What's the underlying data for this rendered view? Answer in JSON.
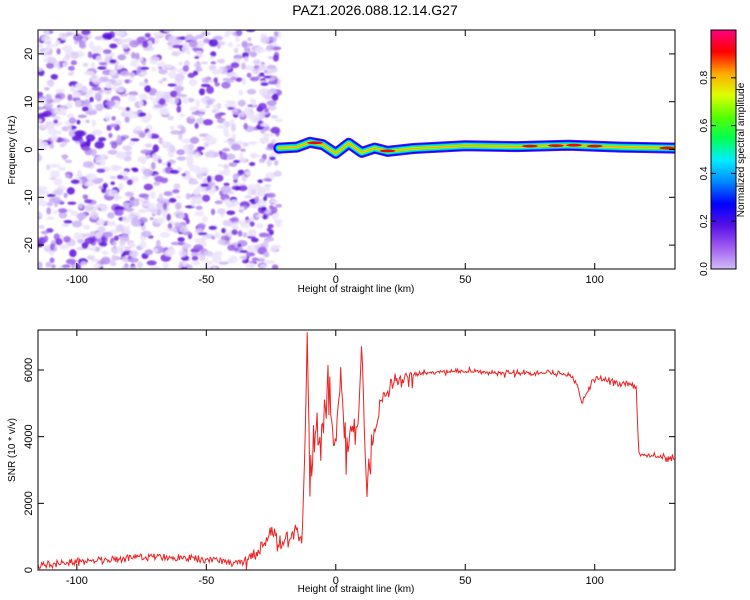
{
  "title": "PAZ1.2026.088.12.14.G27",
  "chart_data": [
    {
      "type": "heatmap",
      "name": "spectrogram",
      "xlabel": "Height of straight line (km)",
      "ylabel": "Frequency (Hz)",
      "xlim": [
        -115,
        131
      ],
      "ylim": [
        -25,
        25
      ],
      "xticks": [
        -100,
        -50,
        0,
        50,
        100
      ],
      "yticks": [
        -20,
        -10,
        0,
        10,
        20
      ],
      "noise_region": [
        -115,
        -22
      ],
      "signal_ridge": {
        "x": [
          -22,
          -15,
          -10,
          -5,
          0,
          5,
          10,
          15,
          20,
          30,
          50,
          70,
          90,
          110,
          131
        ],
        "freq": [
          0.3,
          0.5,
          1.5,
          1.0,
          -0.8,
          1.3,
          -0.6,
          0.3,
          -0.4,
          0.2,
          0.8,
          0.6,
          0.9,
          0.5,
          0.3
        ]
      }
    },
    {
      "type": "colorbar",
      "label": "Normalized spectral amplitude",
      "range": [
        0,
        1
      ],
      "ticks": [
        "0.0",
        "0.2",
        "0.4",
        "0.6",
        "0.8"
      ],
      "colors": [
        "#d3bcf6",
        "#9f5cf0",
        "#5510e6",
        "#0000ff",
        "#0088ff",
        "#00eeff",
        "#00ff55",
        "#55ff00",
        "#ddff00",
        "#ffaa00",
        "#ff0000",
        "#ff0080"
      ]
    },
    {
      "type": "line",
      "name": "snr",
      "xlabel": "Height of straight line (km)",
      "ylabel": "SNR (10 * v/v)",
      "xlim": [
        -115,
        131
      ],
      "ylim": [
        0,
        7200
      ],
      "xticks": [
        -100,
        -50,
        0,
        50,
        100
      ],
      "yticks": [
        0,
        2000,
        4000,
        6000
      ],
      "color": "#ee2222",
      "x": [
        -115,
        -110,
        -100,
        -90,
        -80,
        -70,
        -60,
        -50,
        -40,
        -35,
        -30,
        -27,
        -25,
        -22,
        -20,
        -18,
        -15,
        -13,
        -12,
        -11,
        -10,
        -9,
        -8,
        -7,
        -5,
        -3,
        -1,
        0,
        2,
        4,
        6,
        8,
        10,
        11,
        12,
        13,
        15,
        17,
        20,
        25,
        30,
        40,
        50,
        60,
        70,
        80,
        90,
        93,
        95,
        100,
        105,
        110,
        115,
        116,
        117,
        118,
        120,
        125,
        131
      ],
      "y": [
        150,
        180,
        250,
        280,
        360,
        400,
        370,
        300,
        220,
        240,
        420,
        820,
        1150,
        720,
        900,
        1000,
        1300,
        800,
        3500,
        7050,
        2200,
        3000,
        4300,
        3700,
        4200,
        5500,
        4000,
        3600,
        5800,
        3500,
        4600,
        3400,
        6550,
        4000,
        2100,
        3300,
        4000,
        5100,
        5300,
        5700,
        5850,
        5950,
        5950,
        5900,
        5920,
        5900,
        5850,
        5650,
        5000,
        5750,
        5650,
        5600,
        5550,
        5500,
        3500,
        3450,
        3450,
        3400,
        3350
      ]
    }
  ]
}
